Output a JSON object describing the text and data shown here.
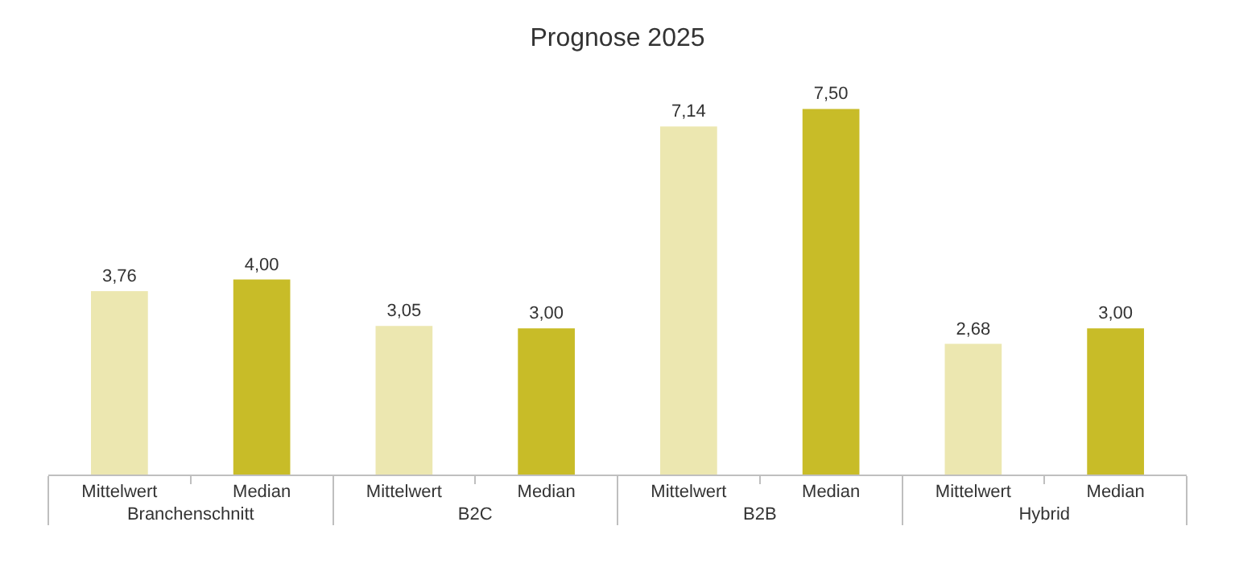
{
  "chart_data": {
    "type": "bar",
    "title": "Prognose 2025",
    "categories": [
      "Branchenschnitt",
      "B2C",
      "B2B",
      "Hybrid"
    ],
    "series": [
      {
        "name": "Mittelwert",
        "color": "#ece7b0",
        "values": [
          3.76,
          3.05,
          7.14,
          2.68
        ],
        "value_labels": [
          "3,76",
          "3,05",
          "7,14",
          "2,68"
        ]
      },
      {
        "name": "Median",
        "color": "#c8bc28",
        "values": [
          4.0,
          3.0,
          7.5,
          3.0
        ],
        "value_labels": [
          "4,00",
          "3,00",
          "7,50",
          "3,00"
        ]
      }
    ],
    "legend": false
  }
}
